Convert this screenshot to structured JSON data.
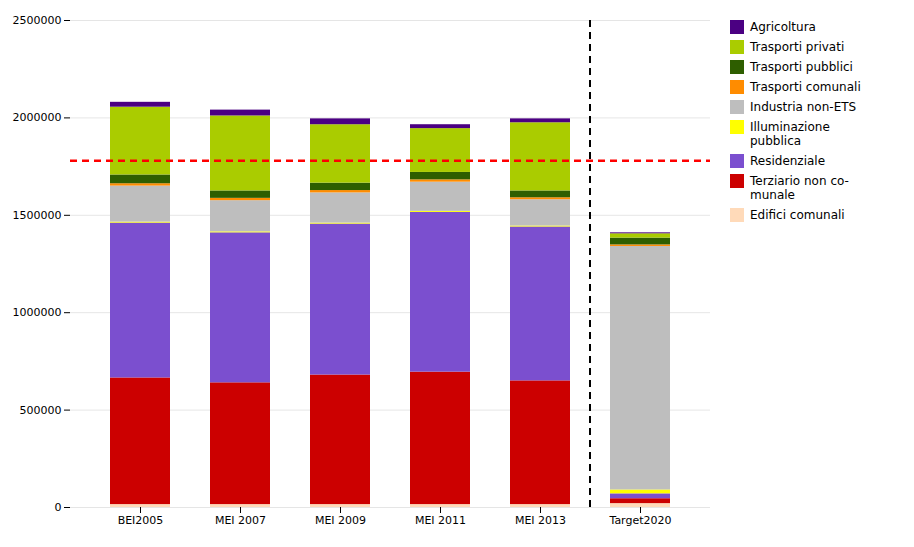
{
  "chart_data": {
    "type": "bar",
    "stacked": true,
    "categories": [
      "BEI2005",
      "MEI 2007",
      "MEI 2009",
      "MEI 2011",
      "MEI 2013",
      "Target2020"
    ],
    "series": [
      {
        "name": "Edifici comunali",
        "color": "#FFDAB9",
        "values": [
          15000,
          15000,
          15000,
          15000,
          15000,
          20000
        ]
      },
      {
        "name": "Terziario non co-\nmunale",
        "color": "#CC0000",
        "values": [
          650000,
          625000,
          665000,
          680000,
          635000,
          25000
        ]
      },
      {
        "name": "Residenziale",
        "color": "#7B4FCF",
        "values": [
          795000,
          770000,
          775000,
          820000,
          790000,
          25000
        ]
      },
      {
        "name": "Illuminazione\npubblica",
        "color": "#FFFF00",
        "values": [
          5000,
          5000,
          5000,
          5000,
          5000,
          20000
        ]
      },
      {
        "name": "Industria non-ETS",
        "color": "#BEBEBE",
        "values": [
          185000,
          160000,
          155000,
          150000,
          135000,
          1250000
        ]
      },
      {
        "name": "Trasporti comunali",
        "color": "#FF8C00",
        "values": [
          12000,
          12000,
          12000,
          12000,
          10000,
          8000
        ]
      },
      {
        "name": "Trasporti pubblici",
        "color": "#2E5E00",
        "values": [
          45000,
          38000,
          38000,
          38000,
          35000,
          35000
        ]
      },
      {
        "name": "Trasporti privati",
        "color": "#AACC00",
        "values": [
          348000,
          385000,
          300000,
          225000,
          350000,
          22000
        ]
      },
      {
        "name": "Agricoltura",
        "color": "#4B0082",
        "values": [
          25000,
          30000,
          30000,
          20000,
          20000,
          5000
        ]
      }
    ],
    "ylim": [
      0,
      2500000
    ],
    "yticks": [
      0,
      500000,
      1000000,
      1500000,
      2000000,
      2500000
    ],
    "grid": true,
    "legend": "right",
    "reference_lines": [
      {
        "axis": "y",
        "value": 1780000,
        "color": "#FF0000",
        "line_style": "dashed"
      }
    ],
    "separators": [
      {
        "after": "MEI 2013",
        "color": "#000000",
        "line_style": "dashed"
      }
    ]
  }
}
